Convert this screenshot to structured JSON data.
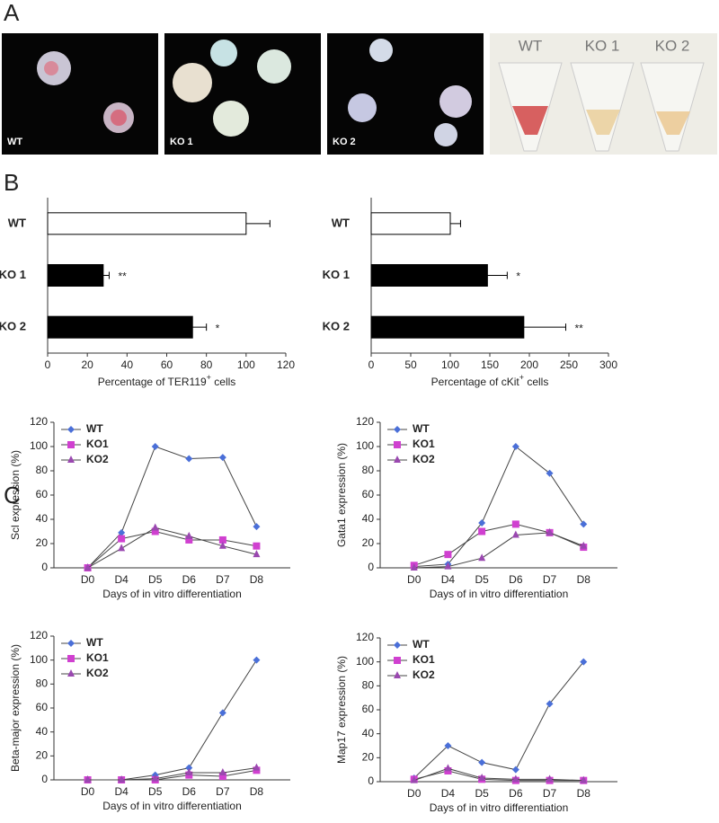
{
  "panel_labels": [
    "A",
    "B",
    "C"
  ],
  "panel_a": {
    "micrographs": [
      "WT",
      "KO 1",
      "KO 2"
    ],
    "tubes": [
      "WT",
      "KO 1",
      "KO 2"
    ]
  },
  "chart_data": [
    {
      "type": "hbar",
      "categories": [
        "WT",
        "KO 1",
        "KO 2"
      ],
      "values": [
        100,
        28,
        73
      ],
      "errors": [
        12,
        3,
        7
      ],
      "significance": [
        null,
        "**",
        "*"
      ],
      "colors": [
        "#ffffff",
        "#000000",
        "#000000"
      ],
      "xlabel": {
        "text": "Percentage of  TER119",
        "sup": "+",
        "tail": " cells"
      },
      "xlim": [
        0,
        120
      ],
      "xticks": [
        0,
        20,
        40,
        60,
        80,
        100,
        120
      ]
    },
    {
      "type": "hbar",
      "categories": [
        "WT",
        "KO 1",
        "KO 2"
      ],
      "values": [
        100,
        147,
        193
      ],
      "errors": [
        13,
        25,
        53
      ],
      "significance": [
        null,
        "*",
        "**"
      ],
      "colors": [
        "#ffffff",
        "#000000",
        "#000000"
      ],
      "xlabel": {
        "text": "Percentage of  cKit",
        "sup": "+",
        "tail": " cells"
      },
      "xlim": [
        0,
        300
      ],
      "xticks": [
        0,
        50,
        100,
        150,
        200,
        250,
        300
      ]
    },
    {
      "type": "line",
      "categories": [
        "D0",
        "D4",
        "D5",
        "D6",
        "D7",
        "D8"
      ],
      "ylabel": "Scl expression (%)",
      "xlabel": "Days of in vitro differentiation",
      "ylim": [
        0,
        120
      ],
      "yticks": [
        0,
        20,
        40,
        60,
        80,
        100,
        120
      ],
      "series": [
        {
          "name": "WT",
          "color": "#4a6fd8",
          "marker": "diamond",
          "values": [
            0,
            29,
            100,
            90,
            91,
            34
          ]
        },
        {
          "name": "KO1",
          "color": "#d040d0",
          "marker": "square",
          "values": [
            0,
            24,
            30,
            23,
            23,
            18
          ]
        },
        {
          "name": "KO2",
          "color": "#9a48b0",
          "marker": "triangle",
          "values": [
            0,
            16,
            33,
            26,
            18,
            11
          ]
        }
      ]
    },
    {
      "type": "line",
      "categories": [
        "D0",
        "D4",
        "D5",
        "D6",
        "D7",
        "D8"
      ],
      "ylabel": "Gata1 expression (%)",
      "xlabel": "Days of in vitro differentiation",
      "ylim": [
        0,
        120
      ],
      "yticks": [
        0,
        20,
        40,
        60,
        80,
        100,
        120
      ],
      "series": [
        {
          "name": "WT",
          "color": "#4a6fd8",
          "marker": "diamond",
          "values": [
            1,
            3,
            37,
            100,
            78,
            36
          ]
        },
        {
          "name": "KO1",
          "color": "#d040d0",
          "marker": "square",
          "values": [
            2,
            11,
            30,
            36,
            29,
            17
          ]
        },
        {
          "name": "KO2",
          "color": "#9a48b0",
          "marker": "triangle",
          "values": [
            0,
            1,
            8,
            27,
            29,
            18
          ]
        }
      ]
    },
    {
      "type": "line",
      "categories": [
        "D0",
        "D4",
        "D5",
        "D6",
        "D7",
        "D8"
      ],
      "ylabel": "Beta-major expression (%)",
      "xlabel": "Days of in vitro differentiation",
      "ylim": [
        0,
        120
      ],
      "yticks": [
        0,
        20,
        40,
        60,
        80,
        100,
        120
      ],
      "series": [
        {
          "name": "WT",
          "color": "#4a6fd8",
          "marker": "diamond",
          "values": [
            0,
            0,
            4,
            10,
            56,
            100
          ]
        },
        {
          "name": "KO1",
          "color": "#d040d0",
          "marker": "square",
          "values": [
            0,
            0,
            0,
            4,
            3,
            8
          ]
        },
        {
          "name": "KO2",
          "color": "#9a48b0",
          "marker": "triangle",
          "values": [
            0,
            0,
            1,
            6,
            6,
            10
          ]
        }
      ]
    },
    {
      "type": "line",
      "categories": [
        "D0",
        "D4",
        "D5",
        "D6",
        "D7",
        "D8"
      ],
      "ylabel": "Map17 expression (%)",
      "xlabel": "Days of in vitro differentiation",
      "ylim": [
        0,
        120
      ],
      "yticks": [
        0,
        20,
        40,
        60,
        80,
        100,
        120
      ],
      "series": [
        {
          "name": "WT",
          "color": "#4a6fd8",
          "marker": "diamond",
          "values": [
            3,
            30,
            16,
            10,
            65,
            100
          ]
        },
        {
          "name": "KO1",
          "color": "#d040d0",
          "marker": "square",
          "values": [
            2,
            9,
            2,
            1,
            1,
            1
          ]
        },
        {
          "name": "KO2",
          "color": "#9a48b0",
          "marker": "triangle",
          "values": [
            1,
            11,
            3,
            2,
            2,
            1
          ]
        }
      ]
    }
  ]
}
